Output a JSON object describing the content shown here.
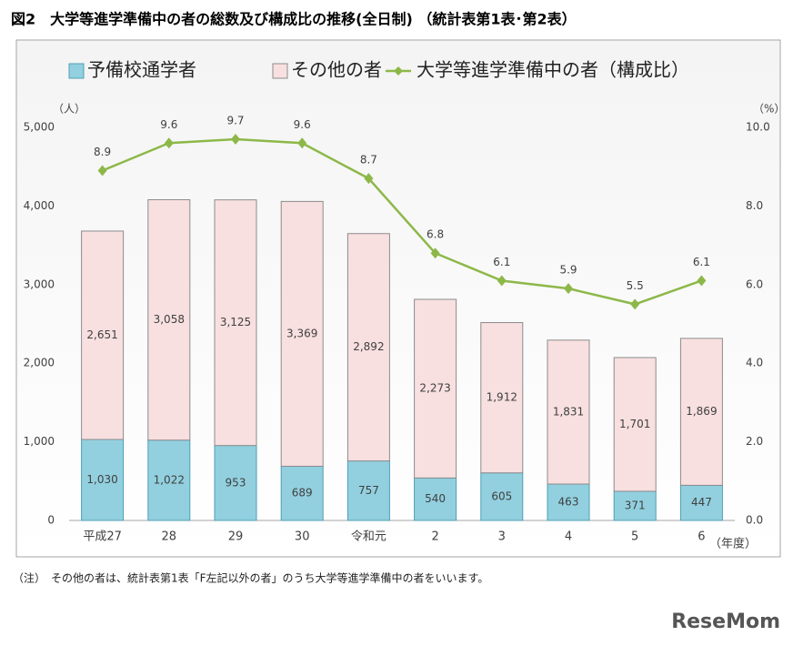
{
  "chart_data": {
    "type": "bar-line",
    "title": "図2　大学等進学準備中の者の総数及び構成比の推移(全日制) （統計表第1表･第2表）",
    "y_label": "（人）",
    "y2_label": "（%）",
    "x_unit": "（年度）",
    "categories": [
      "平成27",
      "28",
      "29",
      "30",
      "令和元",
      "2",
      "3",
      "4",
      "5",
      "6"
    ],
    "series": [
      {
        "name": "予備校通学者",
        "type": "bar",
        "color": "#92d0df",
        "stroke": "#4f9fb6",
        "values": [
          1030,
          1022,
          953,
          689,
          757,
          540,
          605,
          463,
          371,
          447
        ],
        "value_labels": [
          "1,030",
          "1,022",
          "953",
          "689",
          "757",
          "540",
          "605",
          "463",
          "371",
          "447"
        ]
      },
      {
        "name": "その他の者",
        "type": "bar",
        "color": "#f8dfe0",
        "stroke": "#8c8c8c",
        "values": [
          2651,
          3058,
          3125,
          3369,
          2892,
          2273,
          1912,
          1831,
          1701,
          1869
        ],
        "value_labels": [
          "2,651",
          "3,058",
          "3,125",
          "3,369",
          "2,892",
          "2,273",
          "1,912",
          "1,831",
          "1,701",
          "1,869"
        ]
      },
      {
        "name": "大学等進学準備中の者（構成比）",
        "type": "line",
        "axis": "y2",
        "color": "#8db849",
        "values": [
          8.9,
          9.6,
          9.7,
          9.6,
          8.7,
          6.8,
          6.1,
          5.9,
          5.5,
          6.1
        ]
      }
    ],
    "ylim": [
      0,
      5000
    ],
    "yticks": [
      0,
      {
        "value": 1000,
        "label": "1,000"
      },
      {
        "value": 2000,
        "label": "2,000"
      },
      {
        "value": 3000,
        "label": "3,000"
      },
      {
        "value": 4000,
        "label": "4,000"
      },
      {
        "value": 5000,
        "label": "5,000"
      }
    ],
    "y2lim": [
      0,
      10
    ],
    "y2ticks": [
      {
        "value": 0,
        "label": "0.0"
      },
      {
        "value": 2,
        "label": "2.0"
      },
      {
        "value": 4,
        "label": "4.0"
      },
      {
        "value": 6,
        "label": "6.0"
      },
      {
        "value": 8,
        "label": "8.0"
      },
      {
        "value": 10,
        "label": "10.0"
      }
    ],
    "grid": false,
    "note": "（注）　その他の者は、統計表第1表「F左記以外の者」のうち大学等進学準備中の者をいいます。",
    "watermark": "ReseMom"
  }
}
